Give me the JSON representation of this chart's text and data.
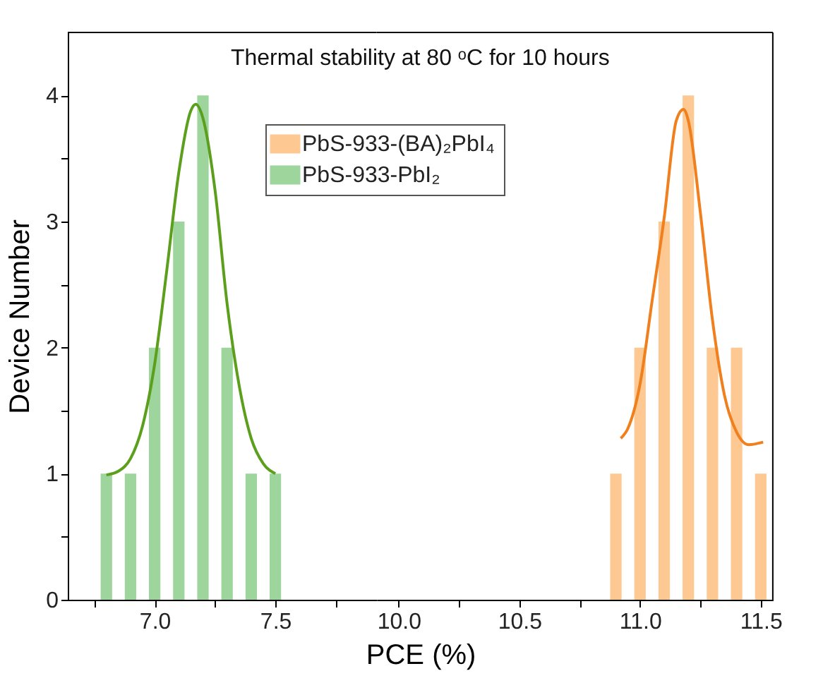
{
  "chart_data": [
    {
      "type": "histogram",
      "ylabel": "Device Number",
      "annotations": [
        "Thermal stability at 80 ᵒC for 10 hours"
      ],
      "legend": "top",
      "bins": [
        6.75,
        6.85,
        6.95,
        7.05,
        7.15,
        7.25,
        7.35,
        7.45,
        7.55
      ],
      "series": [
        {
          "name": "PbS-933-PbI₂",
          "color": "#9dd59c",
          "values": [
            1,
            1,
            2,
            3,
            4,
            2,
            1,
            1
          ]
        },
        {
          "type": "line",
          "color": "#5b9f1c",
          "x": [
            6.8,
            6.85,
            6.9,
            6.95,
            7.0,
            7.05,
            7.1,
            7.15,
            7.17,
            7.2,
            7.25,
            7.3,
            7.35,
            7.4,
            7.45,
            7.5
          ],
          "values": [
            0.99,
            1.02,
            1.12,
            1.38,
            1.87,
            2.61,
            3.39,
            3.88,
            3.93,
            3.82,
            3.25,
            2.35,
            1.7,
            1.28,
            1.08,
            1.0
          ]
        }
      ],
      "xlim": [
        6.64,
        7.92
      ],
      "xticks": [
        {
          "value": 6.75,
          "label": null
        },
        {
          "value": 7,
          "label": "7.0"
        },
        {
          "value": 7.25,
          "label": null
        },
        7.5,
        {
          "value": 7.75,
          "label": null
        }
      ],
      "ylim": [
        0,
        4.5
      ],
      "yticks": [
        0,
        {
          "value": 0.5,
          "label": null
        },
        1,
        {
          "value": 1.5,
          "label": null
        },
        2,
        {
          "value": 2.5,
          "label": null
        },
        3,
        {
          "value": 3.5,
          "label": null
        },
        4
      ]
    },
    {
      "type": "histogram",
      "xlabel": "PCE (%)",
      "legend": "top",
      "tick_labels": "x",
      "bins": [
        10.85,
        10.95,
        11.05,
        11.15,
        11.25,
        11.35,
        11.45,
        11.55
      ],
      "series": [
        {
          "name": "PbS-933-(BA)₂PbI₄",
          "color": "#fdc891",
          "values": [
            1,
            2,
            3,
            4,
            2,
            2,
            1
          ]
        },
        {
          "type": "line",
          "color": "#f07f1e",
          "x": [
            10.92,
            10.95,
            11.0,
            11.05,
            11.1,
            11.15,
            11.18,
            11.2,
            11.25,
            11.3,
            11.35,
            11.4,
            11.45,
            11.51
          ],
          "values": [
            1.28,
            1.36,
            1.71,
            2.37,
            3.03,
            3.8,
            3.89,
            3.8,
            3.07,
            2.22,
            1.62,
            1.33,
            1.23,
            1.25
          ]
        }
      ],
      "xlim": [
        9.91,
        11.55
      ],
      "xticks": [
        {
          "value": 10,
          "label": "10.0"
        },
        {
          "value": 10.25,
          "label": null
        },
        10.5,
        {
          "value": 10.75,
          "label": null
        },
        {
          "value": 11,
          "label": "11.0"
        },
        {
          "value": 11.25,
          "label": null
        },
        11.5
      ],
      "ylim": [
        0,
        4.5
      ]
    }
  ]
}
